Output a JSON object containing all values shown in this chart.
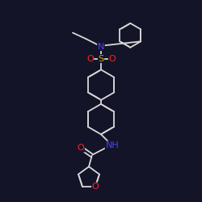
{
  "background_color": "#141428",
  "bond_color": "#d8d8d8",
  "atom_colors": {
    "N": "#4444ff",
    "O": "#ff2222",
    "S": "#ccaa00"
  },
  "figsize": [
    2.5,
    2.5
  ],
  "dpi": 100,
  "coords": {
    "scale": 1.0
  }
}
